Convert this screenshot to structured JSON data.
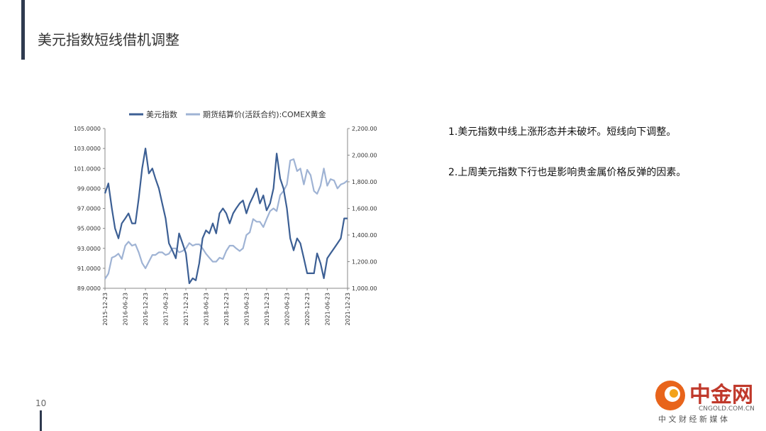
{
  "slide": {
    "title": "美元指数短线借机调整",
    "page_number": "10",
    "bullets": [
      "1.美元指数中线上涨形态并未破坏。短线向下调整。",
      "2.上周美元指数下行也是影响贵金属价格反弹的因素。"
    ],
    "logo": {
      "name": "中金网",
      "domain": "CNGOLD.COM.CN",
      "tagline": "中 文 财 经 新 媒 体"
    }
  },
  "chart_data": {
    "type": "line",
    "x": [
      "2015-12-23",
      "2016-01-23",
      "2016-02-23",
      "2016-03-23",
      "2016-04-23",
      "2016-05-23",
      "2016-06-23",
      "2016-07-23",
      "2016-08-23",
      "2016-09-23",
      "2016-10-23",
      "2016-11-23",
      "2016-12-23",
      "2017-01-23",
      "2017-02-23",
      "2017-03-23",
      "2017-04-23",
      "2017-05-23",
      "2017-06-23",
      "2017-07-23",
      "2017-08-23",
      "2017-09-23",
      "2017-10-23",
      "2017-11-23",
      "2017-12-23",
      "2018-01-23",
      "2018-02-23",
      "2018-03-23",
      "2018-04-23",
      "2018-05-23",
      "2018-06-23",
      "2018-07-23",
      "2018-08-23",
      "2018-09-23",
      "2018-10-23",
      "2018-11-23",
      "2018-12-23",
      "2019-01-23",
      "2019-02-23",
      "2019-03-23",
      "2019-04-23",
      "2019-05-23",
      "2019-06-23",
      "2019-07-23",
      "2019-08-23",
      "2019-09-23",
      "2019-10-23",
      "2019-11-23",
      "2019-12-23",
      "2020-01-23",
      "2020-02-23",
      "2020-03-23",
      "2020-04-23",
      "2020-05-23",
      "2020-06-23",
      "2020-07-23",
      "2020-08-23",
      "2020-09-23",
      "2020-10-23",
      "2020-11-23",
      "2020-12-23",
      "2021-01-23",
      "2021-02-23",
      "2021-03-23",
      "2021-04-23",
      "2021-05-23",
      "2021-06-23",
      "2021-07-23",
      "2021-08-23",
      "2021-09-23",
      "2021-10-23",
      "2021-11-23",
      "2021-12-23"
    ],
    "series": [
      {
        "name": "美元指数",
        "color": "#3c5f94",
        "axis": "y",
        "values": [
          98.5,
          99.5,
          97,
          95,
          94,
          95.5,
          96,
          96.5,
          95.5,
          95.5,
          98,
          101,
          103,
          100.5,
          101,
          100,
          99,
          97.5,
          96,
          93.5,
          92.8,
          92,
          94.5,
          93.5,
          92.5,
          89.5,
          90,
          89.8,
          91.5,
          94,
          94.8,
          94.5,
          95.5,
          94.5,
          96.5,
          97,
          96.5,
          95.5,
          96.5,
          97,
          97.5,
          97.8,
          96.5,
          97.5,
          98.2,
          99,
          97.5,
          98.3,
          96.8,
          97.5,
          99,
          102.5,
          100,
          99,
          97,
          94,
          92.8,
          94,
          93.5,
          92,
          90.5,
          90.5,
          90.5,
          92.5,
          91.5,
          90,
          92,
          92.5,
          93,
          93.5,
          94,
          96,
          96
        ]
      },
      {
        "name": "期货结算价(活跃合约):COMEX黄金",
        "color": "#9fb3d4",
        "axis": "y2",
        "values": [
          1070,
          1110,
          1230,
          1240,
          1260,
          1220,
          1320,
          1350,
          1320,
          1330,
          1270,
          1190,
          1150,
          1200,
          1250,
          1250,
          1270,
          1270,
          1250,
          1260,
          1300,
          1300,
          1270,
          1280,
          1300,
          1340,
          1320,
          1330,
          1330,
          1300,
          1260,
          1230,
          1200,
          1200,
          1230,
          1220,
          1280,
          1320,
          1320,
          1300,
          1280,
          1300,
          1400,
          1420,
          1520,
          1500,
          1500,
          1460,
          1520,
          1580,
          1600,
          1580,
          1700,
          1730,
          1780,
          1960,
          1970,
          1880,
          1900,
          1780,
          1890,
          1850,
          1730,
          1710,
          1770,
          1900,
          1770,
          1820,
          1810,
          1750,
          1780,
          1790,
          1810
        ]
      }
    ],
    "xlim": [
      "2015-12-23",
      "2021-12-23"
    ],
    "xticks": [
      "2015-12-23",
      "2016-06-23",
      "2016-12-23",
      "2017-06-23",
      "2017-12-23",
      "2018-06-23",
      "2018-12-23",
      "2019-06-23",
      "2019-12-23",
      "2020-06-23",
      "2020-12-23",
      "2021-06-23",
      "2021-12-23"
    ],
    "ylim": [
      89,
      105
    ],
    "yticks": [
      {
        "value": 89,
        "label": "89.0000"
      },
      {
        "value": 91,
        "label": "91.0000"
      },
      {
        "value": 93,
        "label": "93.0000"
      },
      {
        "value": 95,
        "label": "95.0000"
      },
      {
        "value": 97,
        "label": "97.0000"
      },
      {
        "value": 99,
        "label": "99.0000"
      },
      {
        "value": 101,
        "label": "101.0000"
      },
      {
        "value": 103,
        "label": "103.0000"
      },
      {
        "value": 105,
        "label": "105.0000"
      }
    ],
    "y2lim": [
      1000,
      2200
    ],
    "y2ticks": [
      {
        "value": 1000,
        "label": "1,000.00"
      },
      {
        "value": 1200,
        "label": "1,200.00"
      },
      {
        "value": 1400,
        "label": "1,400.00"
      },
      {
        "value": 1600,
        "label": "1,600.00"
      },
      {
        "value": 1800,
        "label": "1,800.00"
      },
      {
        "value": 2000,
        "label": "2,000.00"
      },
      {
        "value": 2200,
        "label": "2,200.00"
      }
    ],
    "legend": "top",
    "grid": false
  }
}
